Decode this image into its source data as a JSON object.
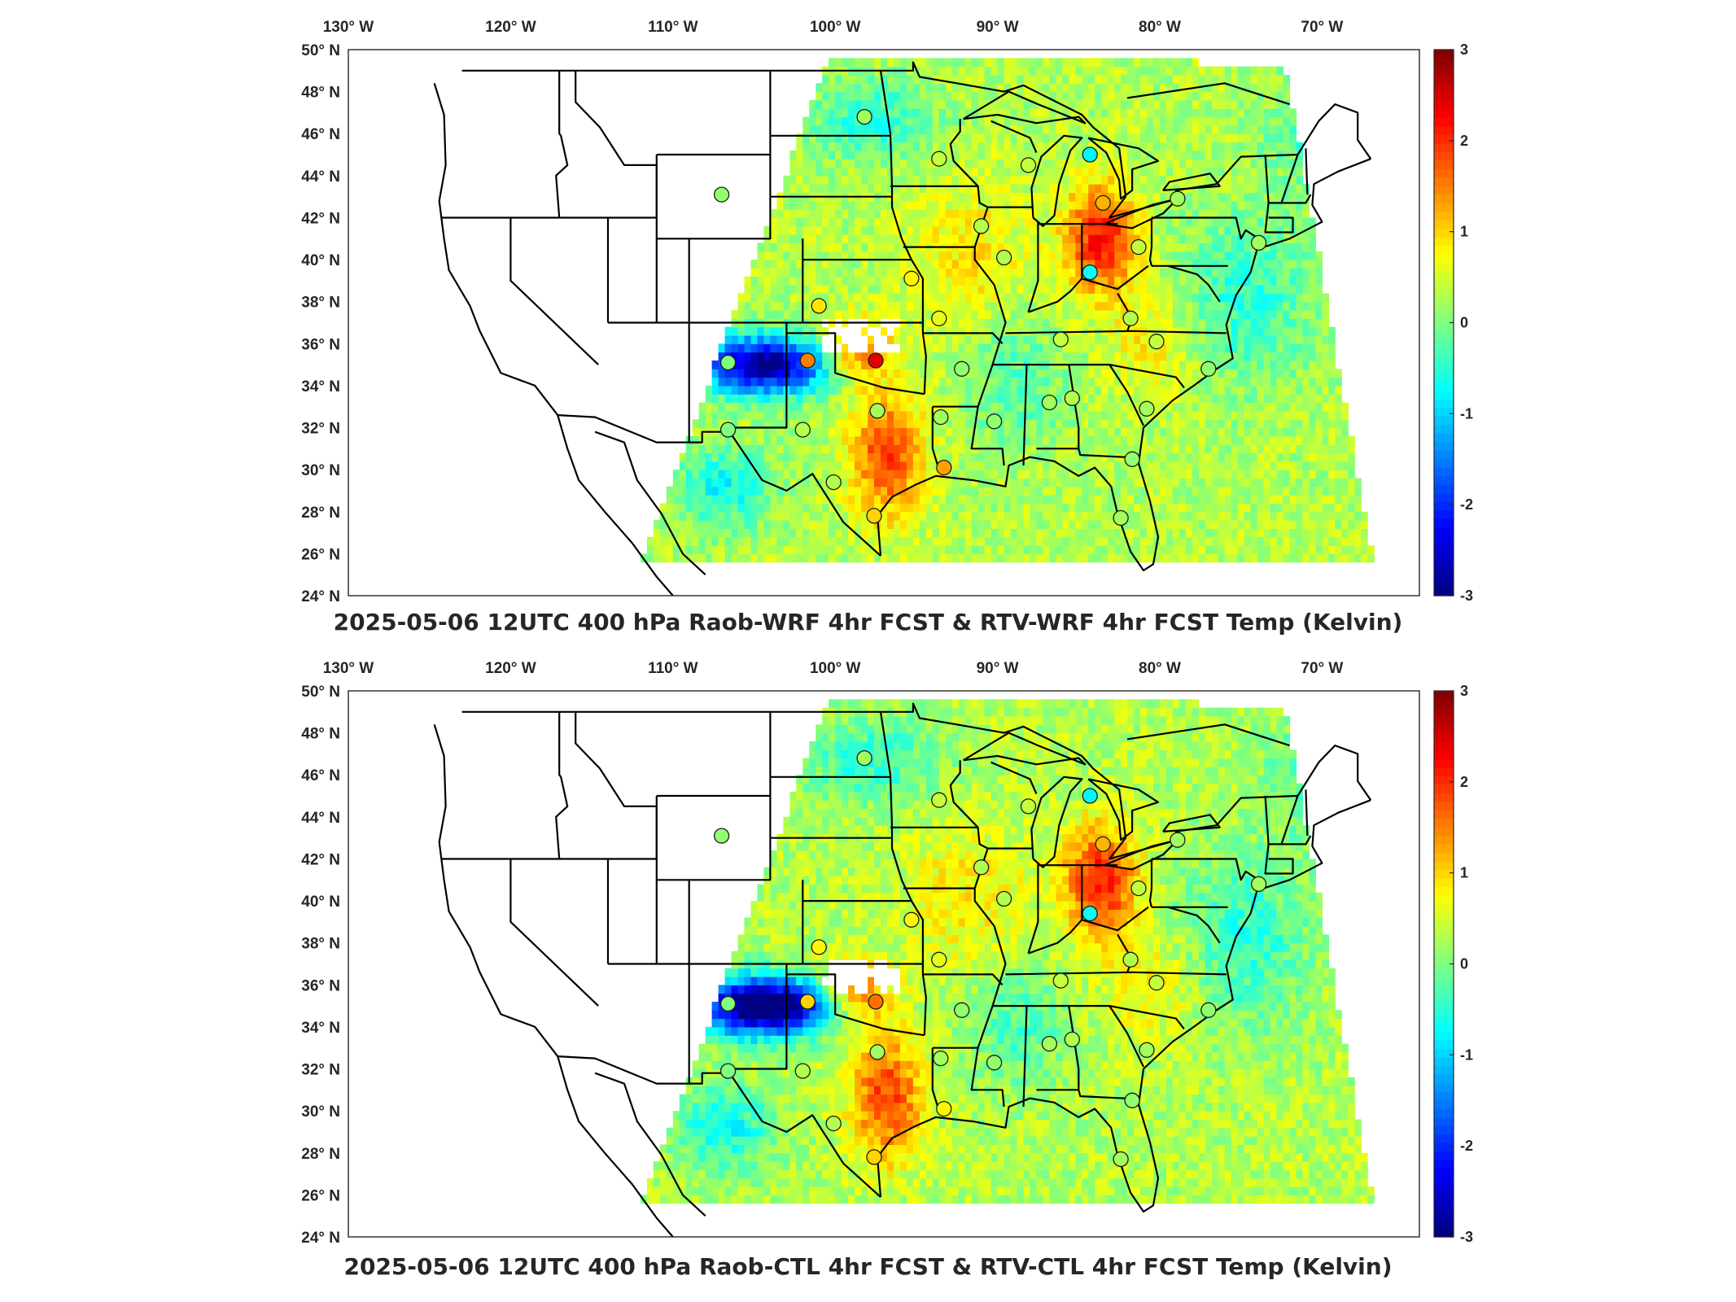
{
  "panels": [
    {
      "title": "2025-05-06 12UTC 400 hPa Raob-WRF 4hr FCST & RTV-WRF 4hr FCST Temp (Kelvin)",
      "stations": [
        {
          "lon": -97.5,
          "lat": 35.2,
          "value": 2.4
        },
        {
          "lon": -101.7,
          "lat": 35.2,
          "value": 1.5
        },
        {
          "lon": -101.0,
          "lat": 37.8,
          "value": 0.9
        },
        {
          "lon": -97.6,
          "lat": 27.8,
          "value": 1.0
        },
        {
          "lon": -93.3,
          "lat": 30.1,
          "value": 1.3
        },
        {
          "lon": -83.5,
          "lat": 42.7,
          "value": 1.2
        },
        {
          "lon": -84.3,
          "lat": 39.4,
          "value": -0.7
        },
        {
          "lon": -84.3,
          "lat": 45.0,
          "value": -0.8
        },
        {
          "lon": -95.3,
          "lat": 39.1,
          "value": 0.8
        },
        {
          "lon": -93.6,
          "lat": 37.2,
          "value": 0.6
        },
        {
          "lon": -98.2,
          "lat": 46.8,
          "value": 0.2
        },
        {
          "lon": -107.0,
          "lat": 43.1,
          "value": 0.1
        },
        {
          "lon": -106.6,
          "lat": 35.1,
          "value": 0.0
        },
        {
          "lon": -106.6,
          "lat": 31.9,
          "value": 0.0
        },
        {
          "lon": -102.0,
          "lat": 31.9,
          "value": 0.3
        },
        {
          "lon": -100.1,
          "lat": 29.4,
          "value": 0.3
        },
        {
          "lon": -97.4,
          "lat": 32.8,
          "value": 0.2
        },
        {
          "lon": -92.2,
          "lat": 34.8,
          "value": 0.1
        },
        {
          "lon": -93.5,
          "lat": 32.5,
          "value": 0.2
        },
        {
          "lon": -90.2,
          "lat": 32.3,
          "value": 0.1
        },
        {
          "lon": -86.8,
          "lat": 33.2,
          "value": 0.2
        },
        {
          "lon": -85.4,
          "lat": 33.4,
          "value": 0.3
        },
        {
          "lon": -81.7,
          "lat": 30.5,
          "value": 0.1
        },
        {
          "lon": -80.8,
          "lat": 32.9,
          "value": 0.2
        },
        {
          "lon": -82.4,
          "lat": 27.7,
          "value": 0.2
        },
        {
          "lon": -81.8,
          "lat": 37.2,
          "value": 0.3
        },
        {
          "lon": -80.2,
          "lat": 36.1,
          "value": 0.4
        },
        {
          "lon": -77.0,
          "lat": 34.8,
          "value": 0.1
        },
        {
          "lon": -86.1,
          "lat": 36.2,
          "value": 0.4
        },
        {
          "lon": -89.6,
          "lat": 40.1,
          "value": 0.3
        },
        {
          "lon": -91.0,
          "lat": 41.6,
          "value": 0.3
        },
        {
          "lon": -93.6,
          "lat": 44.8,
          "value": 0.4
        },
        {
          "lon": -88.1,
          "lat": 44.5,
          "value": 0.4
        },
        {
          "lon": -81.3,
          "lat": 40.6,
          "value": 0.4
        },
        {
          "lon": -78.9,
          "lat": 42.9,
          "value": 0.2
        },
        {
          "lon": -73.9,
          "lat": 40.8,
          "value": 0.2
        }
      ]
    },
    {
      "title": "2025-05-06 12UTC 400 hPa Raob-CTL 4hr FCST & RTV-CTL 4hr FCST Temp (Kelvin)",
      "stations": [
        {
          "lon": -97.5,
          "lat": 35.2,
          "value": 1.6
        },
        {
          "lon": -101.7,
          "lat": 35.2,
          "value": 1.0
        },
        {
          "lon": -101.0,
          "lat": 37.8,
          "value": 0.8
        },
        {
          "lon": -97.6,
          "lat": 27.8,
          "value": 1.0
        },
        {
          "lon": -93.3,
          "lat": 30.1,
          "value": 0.8
        },
        {
          "lon": -83.5,
          "lat": 42.7,
          "value": 1.2
        },
        {
          "lon": -84.3,
          "lat": 39.4,
          "value": -0.7
        },
        {
          "lon": -84.3,
          "lat": 45.0,
          "value": -0.8
        },
        {
          "lon": -95.3,
          "lat": 39.1,
          "value": 0.8
        },
        {
          "lon": -93.6,
          "lat": 37.2,
          "value": 0.6
        },
        {
          "lon": -98.2,
          "lat": 46.8,
          "value": 0.2
        },
        {
          "lon": -107.0,
          "lat": 43.1,
          "value": 0.1
        },
        {
          "lon": -106.6,
          "lat": 35.1,
          "value": 0.0
        },
        {
          "lon": -106.6,
          "lat": 31.9,
          "value": 0.0
        },
        {
          "lon": -102.0,
          "lat": 31.9,
          "value": 0.3
        },
        {
          "lon": -100.1,
          "lat": 29.4,
          "value": 0.3
        },
        {
          "lon": -97.4,
          "lat": 32.8,
          "value": 0.2
        },
        {
          "lon": -92.2,
          "lat": 34.8,
          "value": 0.1
        },
        {
          "lon": -93.5,
          "lat": 32.5,
          "value": 0.2
        },
        {
          "lon": -90.2,
          "lat": 32.3,
          "value": 0.1
        },
        {
          "lon": -86.8,
          "lat": 33.2,
          "value": 0.2
        },
        {
          "lon": -85.4,
          "lat": 33.4,
          "value": 0.3
        },
        {
          "lon": -81.7,
          "lat": 30.5,
          "value": 0.1
        },
        {
          "lon": -80.8,
          "lat": 32.9,
          "value": 0.2
        },
        {
          "lon": -82.4,
          "lat": 27.7,
          "value": 0.2
        },
        {
          "lon": -81.8,
          "lat": 37.2,
          "value": 0.3
        },
        {
          "lon": -80.2,
          "lat": 36.1,
          "value": 0.4
        },
        {
          "lon": -77.0,
          "lat": 34.8,
          "value": 0.1
        },
        {
          "lon": -86.1,
          "lat": 36.2,
          "value": 0.4
        },
        {
          "lon": -89.6,
          "lat": 40.1,
          "value": 0.3
        },
        {
          "lon": -91.0,
          "lat": 41.6,
          "value": 0.3
        },
        {
          "lon": -93.6,
          "lat": 44.8,
          "value": 0.4
        },
        {
          "lon": -88.1,
          "lat": 44.5,
          "value": 0.4
        },
        {
          "lon": -81.3,
          "lat": 40.6,
          "value": 0.4
        },
        {
          "lon": -78.9,
          "lat": 42.9,
          "value": 0.2
        },
        {
          "lon": -73.9,
          "lat": 40.8,
          "value": 0.2
        }
      ]
    }
  ],
  "lon_ticks": [
    {
      "value": -130,
      "label": "130° W"
    },
    {
      "value": -120,
      "label": "120° W"
    },
    {
      "value": -110,
      "label": "110° W"
    },
    {
      "value": -100,
      "label": "100° W"
    },
    {
      "value": -90,
      "label": "90° W"
    },
    {
      "value": -80,
      "label": "80° W"
    },
    {
      "value": -70,
      "label": "70° W"
    }
  ],
  "lat_ticks": [
    {
      "value": 50,
      "label": "50° N"
    },
    {
      "value": 48,
      "label": "48° N"
    },
    {
      "value": 46,
      "label": "46° N"
    },
    {
      "value": 44,
      "label": "44° N"
    },
    {
      "value": 42,
      "label": "42° N"
    },
    {
      "value": 40,
      "label": "40° N"
    },
    {
      "value": 38,
      "label": "38° N"
    },
    {
      "value": 36,
      "label": "36° N"
    },
    {
      "value": 34,
      "label": "34° N"
    },
    {
      "value": 32,
      "label": "32° N"
    },
    {
      "value": 30,
      "label": "30° N"
    },
    {
      "value": 28,
      "label": "28° N"
    },
    {
      "value": 26,
      "label": "26° N"
    },
    {
      "value": 24,
      "label": "24° N"
    }
  ],
  "colorbar": {
    "min": -3,
    "max": 3,
    "ticks": [
      "3",
      "2",
      "1",
      "0",
      "-1",
      "-2",
      "-3"
    ],
    "colormap": "jet"
  },
  "map_extent": {
    "lon_min": -130,
    "lon_max": -64,
    "lat_min": 24,
    "lat_max": 50
  }
}
